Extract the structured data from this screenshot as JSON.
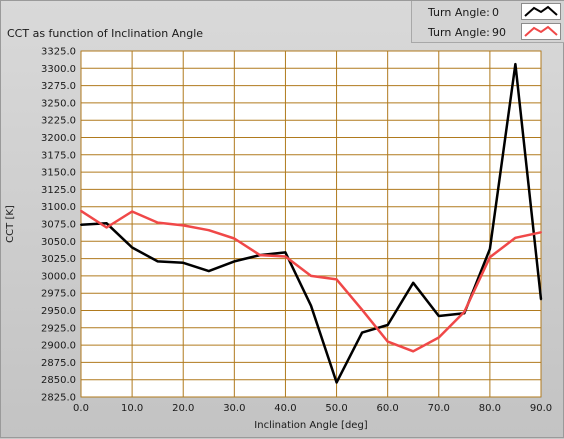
{
  "chart_data": {
    "type": "line",
    "title": "CCT as function of Inclination Angle",
    "xlabel": "Inclination Angle [deg]",
    "ylabel": "CCT [K]",
    "xlim": [
      0,
      90
    ],
    "ylim": [
      2825,
      3325
    ],
    "x_ticks": [
      "0.0",
      "10.0",
      "20.0",
      "30.0",
      "40.0",
      "50.0",
      "60.0",
      "70.0",
      "80.0",
      "90.0"
    ],
    "y_ticks": [
      "2825.0",
      "2850.0",
      "2875.0",
      "2900.0",
      "2925.0",
      "2950.0",
      "2975.0",
      "3000.0",
      "3025.0",
      "3050.0",
      "3075.0",
      "3100.0",
      "3125.0",
      "3150.0",
      "3175.0",
      "3200.0",
      "3225.0",
      "3250.0",
      "3275.0",
      "3300.0",
      "3325.0"
    ],
    "grid": true,
    "legend_position": "top-right",
    "x": [
      0,
      5,
      10,
      15,
      20,
      25,
      30,
      35,
      40,
      45,
      50,
      55,
      60,
      65,
      70,
      75,
      80,
      85,
      90
    ],
    "series": [
      {
        "name": "Turn Angle:",
        "legend_value": "0",
        "color": "#000000",
        "values": [
          3074,
          3076,
          3041,
          3021,
          3019,
          3007,
          3021,
          3030,
          3034,
          2957,
          2846,
          2918,
          2929,
          2990,
          2942,
          2946,
          3039,
          3306,
          2966
        ]
      },
      {
        "name": "Turn Angle:",
        "legend_value": "90",
        "color": "#f04848",
        "values": [
          3094,
          3070,
          3093,
          3077,
          3073,
          3066,
          3054,
          3030,
          3028,
          3000,
          2995,
          2951,
          2905,
          2891,
          2911,
          2948,
          3027,
          3055,
          3063
        ]
      }
    ]
  },
  "colors": {
    "plot_background": "#ffffff",
    "grid": "#b07a1e",
    "panel": "#c8c8c8"
  }
}
